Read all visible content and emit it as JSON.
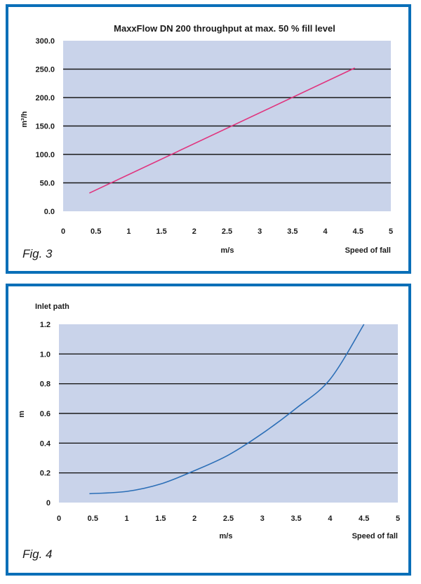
{
  "colors": {
    "frame": "#0a6fb8",
    "plot_bg": "#c9d3ea",
    "grid": "#1a1a1a",
    "line1": "#e0347e",
    "line2": "#2c6fb7"
  },
  "figures": [
    {
      "label": "Fig. 3"
    },
    {
      "label": "Fig. 4"
    }
  ],
  "chart_data": [
    {
      "type": "line",
      "title": "MaxxFlow DN 200 throughput at max. 50 % fill level",
      "xlabel": "m/s",
      "x_note": "Speed of fall",
      "ylabel": "m³/h",
      "xlim": [
        0,
        5
      ],
      "ylim": [
        0,
        300
      ],
      "x_ticks": [
        "0",
        "0.5",
        "1",
        "1.5",
        "2",
        "2.5",
        "3",
        "3.5",
        "4",
        "4.5",
        "5"
      ],
      "y_ticks": [
        "0.0",
        "50.0",
        "100.0",
        "150.0",
        "200.0",
        "250.0",
        "300.0"
      ],
      "grid": "horizontal",
      "series": [
        {
          "x": [
            0.4,
            4.45
          ],
          "y": [
            32,
            252
          ]
        }
      ]
    },
    {
      "type": "line",
      "title": "",
      "xlabel": "m/s",
      "x_note": "Speed of fall",
      "ylabel": "m",
      "y_note": "Inlet path",
      "xlim": [
        0,
        5
      ],
      "ylim": [
        0,
        1.2
      ],
      "x_ticks": [
        "0",
        "0.5",
        "1",
        "1.5",
        "2",
        "2.5",
        "3",
        "3.5",
        "4",
        "4.5",
        "5"
      ],
      "y_ticks": [
        "0",
        "0.2",
        "0.4",
        "0.6",
        "0.8",
        "1.0",
        "1.2"
      ],
      "grid": "horizontal",
      "series": [
        {
          "x": [
            0.45,
            1.0,
            1.5,
            2.0,
            2.5,
            3.0,
            3.5,
            4.0,
            4.5
          ],
          "y": [
            0.06,
            0.075,
            0.125,
            0.215,
            0.32,
            0.465,
            0.635,
            0.83,
            1.2
          ]
        }
      ]
    }
  ]
}
